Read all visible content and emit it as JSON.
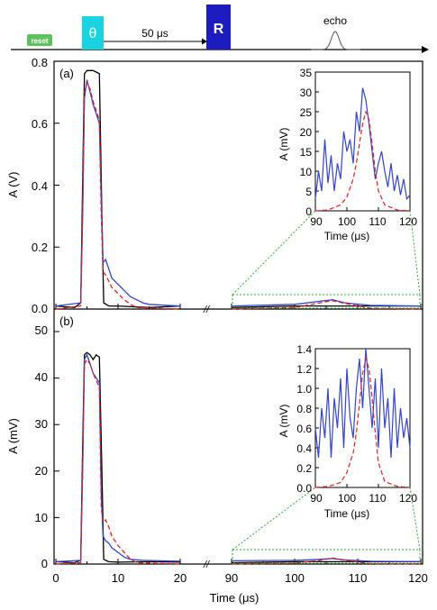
{
  "pulse_sequence": {
    "reset_label": "reset",
    "theta_label": "θ",
    "delay_label": "50 μs",
    "readout_label": "R",
    "echo_label": "echo"
  },
  "colors": {
    "reset": "#5ec15e",
    "theta": "#19d3e0",
    "readout": "#1d1dbf",
    "black_trace": "#000000",
    "blue_trace": "#3344cc",
    "red_trace": "#e02020",
    "zoom_box": "#33aa33"
  },
  "shared_axis": {
    "xlabel": "Time (μs)",
    "x_break_symbol": "//",
    "x_segments": [
      [
        0,
        20
      ],
      [
        90,
        120
      ]
    ],
    "x_ticks": [
      "0",
      "10",
      "20",
      "90",
      "100",
      "110",
      "120"
    ]
  },
  "chart_data": [
    {
      "panel": "(a)",
      "type": "line",
      "ylabel": "A (V)",
      "ylim": [
        0,
        0.8
      ],
      "y_ticks": [
        "0.0",
        "0.2",
        "0.4",
        "0.6",
        "0.8"
      ],
      "series": [
        {
          "color": "black",
          "style": "solid",
          "x": [
            0,
            3,
            4,
            4.3,
            4.6,
            5,
            5.5,
            6,
            6.5,
            7,
            7.4,
            7.7,
            8.5,
            10,
            15,
            20,
            90,
            100,
            110,
            120
          ],
          "y": [
            0.01,
            0.005,
            0.02,
            0.4,
            0.76,
            0.77,
            0.77,
            0.77,
            0.765,
            0.76,
            0.3,
            0.02,
            0.01,
            0.01,
            0.005,
            0.01,
            0.005,
            0.01,
            0.01,
            0.01
          ]
        },
        {
          "color": "blue",
          "style": "solid",
          "x": [
            0,
            4,
            4.3,
            4.6,
            5,
            5.5,
            6,
            7,
            7.3,
            7.6,
            8,
            8.5,
            9,
            10,
            11,
            12,
            13,
            14,
            15,
            20,
            90,
            100,
            104,
            106,
            108,
            112,
            120
          ],
          "y": [
            0.01,
            0.02,
            0.3,
            0.68,
            0.74,
            0.7,
            0.66,
            0.6,
            0.35,
            0.15,
            0.16,
            0.13,
            0.1,
            0.08,
            0.06,
            0.04,
            0.03,
            0.02,
            0.015,
            0.01,
            0.01,
            0.015,
            0.025,
            0.03,
            0.02,
            0.012,
            0.01
          ]
        },
        {
          "color": "red",
          "style": "dashed",
          "x": [
            0,
            4,
            4.3,
            4.6,
            5,
            5.5,
            6,
            7,
            7.3,
            7.6,
            8,
            8.5,
            9,
            10,
            11,
            12,
            13,
            20,
            90,
            100,
            104,
            106,
            108,
            112,
            120
          ],
          "y": [
            0,
            0.01,
            0.3,
            0.7,
            0.73,
            0.71,
            0.67,
            0.61,
            0.3,
            0.12,
            0.11,
            0.09,
            0.07,
            0.05,
            0.03,
            0.015,
            0.005,
            0,
            0,
            0.005,
            0.02,
            0.027,
            0.018,
            0.003,
            0
          ]
        }
      ],
      "inset": {
        "xlabel": "Time (μs)",
        "ylabel": "A (mV)",
        "xlim": [
          90,
          120
        ],
        "ylim": [
          0,
          35
        ],
        "x_ticks": [
          "90",
          "100",
          "110",
          "120"
        ],
        "y_ticks": [
          "0",
          "5",
          "10",
          "15",
          "20",
          "25",
          "30",
          "35"
        ],
        "series": [
          {
            "color": "blue",
            "style": "solid",
            "x": [
              90,
              91,
              92,
              93,
              94,
              95,
              96,
              97,
              98,
              99,
              100,
              101,
              102,
              103,
              104,
              105,
              106,
              107,
              108,
              109,
              110,
              111,
              112,
              113,
              114,
              115,
              116,
              117,
              118,
              119,
              120
            ],
            "y": [
              3,
              10,
              5,
              18,
              7,
              14,
              5,
              12,
              8,
              20,
              15,
              18,
              12,
              25,
              20,
              31,
              28,
              22,
              15,
              8,
              12,
              15,
              10,
              6,
              12,
              5,
              9,
              4,
              8,
              3,
              4
            ]
          },
          {
            "color": "red",
            "style": "dashed",
            "x": [
              90,
              94,
              98,
              100,
              102,
              103,
              104,
              105,
              106,
              107,
              108,
              109,
              110,
              112,
              116,
              120
            ],
            "y": [
              0,
              0.2,
              1.5,
              3.5,
              8,
              12,
              17,
              22,
              25,
              23,
              17,
              10,
              5,
              1.5,
              0.2,
              0
            ]
          }
        ]
      }
    },
    {
      "panel": "(b)",
      "type": "line",
      "ylabel": "A (mV)",
      "ylim": [
        0,
        50
      ],
      "y_ticks": [
        "0",
        "10",
        "20",
        "30",
        "40",
        "50"
      ],
      "series": [
        {
          "color": "black",
          "style": "solid",
          "x": [
            0,
            3,
            4,
            4.3,
            4.6,
            5,
            5.5,
            6,
            6.5,
            7,
            7.4,
            7.7,
            8.5,
            10,
            15,
            20,
            90,
            100,
            110,
            120
          ],
          "y": [
            0.5,
            0.3,
            0.8,
            25,
            45,
            45.5,
            45,
            44,
            45,
            44.5,
            20,
            1,
            0.5,
            0.4,
            0.5,
            0.4,
            0.3,
            0.5,
            0.5,
            0.5
          ]
        },
        {
          "color": "blue",
          "style": "solid",
          "x": [
            0,
            4,
            4.3,
            4.6,
            5,
            5.5,
            6,
            7,
            7.3,
            7.6,
            8,
            8.5,
            9,
            10,
            11,
            12,
            14,
            20,
            90,
            100,
            104,
            106,
            108,
            112,
            120
          ],
          "y": [
            0.5,
            0.8,
            20,
            44,
            45,
            43,
            41,
            39,
            15,
            6,
            5,
            4.5,
            3.5,
            2.5,
            1.5,
            1,
            0.8,
            0.6,
            0.7,
            0.8,
            1,
            1.2,
            0.9,
            0.6,
            0.5
          ]
        },
        {
          "color": "red",
          "style": "dashed",
          "x": [
            0,
            4,
            4.3,
            4.6,
            5,
            5.5,
            6,
            7,
            7.3,
            7.6,
            8,
            8.5,
            9,
            10,
            11,
            12,
            13,
            20,
            90,
            100,
            104,
            106,
            108,
            112,
            120
          ],
          "y": [
            0,
            0.3,
            20,
            43,
            44,
            43,
            41,
            38,
            12,
            9,
            9.5,
            8,
            6,
            4,
            2.5,
            1,
            0.3,
            0,
            0,
            0.2,
            0.8,
            1.3,
            0.8,
            0.1,
            0
          ]
        }
      ],
      "inset": {
        "xlabel": "Time (μs)",
        "ylabel": "A (mV)",
        "xlim": [
          90,
          120
        ],
        "ylim": [
          0,
          1.4
        ],
        "x_ticks": [
          "90",
          "100",
          "110",
          "120"
        ],
        "y_ticks": [
          "0.0",
          "0.2",
          "0.4",
          "0.6",
          "0.8",
          "1.0",
          "1.2",
          "1.4"
        ],
        "series": [
          {
            "color": "blue",
            "style": "solid",
            "x": [
              90,
              91,
              92,
              93,
              94,
              95,
              96,
              97,
              98,
              99,
              100,
              101,
              102,
              103,
              104,
              105,
              106,
              107,
              108,
              109,
              110,
              111,
              112,
              113,
              114,
              115,
              116,
              117,
              118,
              119,
              120
            ],
            "y": [
              0.6,
              0.3,
              0.8,
              0.5,
              1.0,
              0.3,
              0.9,
              0.6,
              1.1,
              0.4,
              1.2,
              0.7,
              0.5,
              1.0,
              1.3,
              0.8,
              1.4,
              1.0,
              0.6,
              1.1,
              0.4,
              1.2,
              0.6,
              0.9,
              0.3,
              1.0,
              0.4,
              0.8,
              0.5,
              0.7,
              0.4
            ]
          },
          {
            "color": "red",
            "style": "dashed",
            "x": [
              90,
              94,
              98,
              100,
              102,
              103,
              104,
              105,
              106,
              107,
              108,
              109,
              110,
              112,
              116,
              120
            ],
            "y": [
              0,
              0.01,
              0.05,
              0.15,
              0.35,
              0.55,
              0.85,
              1.15,
              1.3,
              1.2,
              0.9,
              0.55,
              0.25,
              0.06,
              0.01,
              0
            ]
          }
        ]
      }
    }
  ]
}
